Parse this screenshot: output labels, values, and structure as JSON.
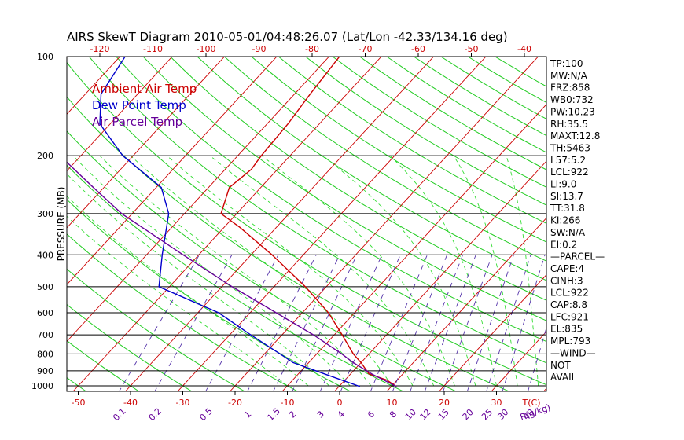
{
  "chart_data": {
    "type": "line",
    "title": "AIRS SkewT Diagram 2010-05-01/04:48:26.07 (Lat/Lon -42.33/134.16 deg)",
    "ylabel": "PRESSURE (MB)",
    "xlabel": "T(C)",
    "mixing_ratio_unit": "R(g/kg)",
    "y_scale": "log",
    "ylim": [
      1050,
      100
    ],
    "pressure_ticks": [
      100,
      200,
      300,
      400,
      500,
      600,
      700,
      800,
      900,
      1000
    ],
    "bottom_temp_ticks": [
      -50,
      -40,
      -30,
      -20,
      -10,
      0,
      10,
      20,
      30
    ],
    "top_temp_ticks": [
      -120,
      -110,
      -100,
      -90,
      -80,
      -70,
      -60,
      -50,
      -40
    ],
    "mixing_ratio_ticks": [
      "0.1",
      "0.2",
      "0.5",
      "1",
      "1.5",
      "2",
      "3",
      "4",
      "6",
      "8",
      "10",
      "12",
      "15",
      "20",
      "25",
      "30",
      "40"
    ],
    "grid": true,
    "legend_position": "top-left",
    "series": [
      {
        "name": "Ambient Air Temp",
        "color": "#cc0000",
        "points": [
          {
            "p": 1005,
            "t": 11.0
          },
          {
            "p": 960,
            "t": 8.0
          },
          {
            "p": 920,
            "t": 3.5
          },
          {
            "p": 850,
            "t": 0.0
          },
          {
            "p": 800,
            "t": -3.0
          },
          {
            "p": 700,
            "t": -8.5
          },
          {
            "p": 600,
            "t": -15.0
          },
          {
            "p": 500,
            "t": -24.0
          },
          {
            "p": 400,
            "t": -36.0
          },
          {
            "p": 330,
            "t": -47.0
          },
          {
            "p": 300,
            "t": -53.0
          },
          {
            "p": 250,
            "t": -56.0
          },
          {
            "p": 220,
            "t": -55.0
          },
          {
            "p": 200,
            "t": -55.5
          },
          {
            "p": 160,
            "t": -56.0
          },
          {
            "p": 130,
            "t": -57.0
          },
          {
            "p": 100,
            "t": -58.0
          }
        ]
      },
      {
        "name": "Dew Point Temp",
        "color": "#0000cc",
        "points": [
          {
            "p": 1005,
            "t": 4.0
          },
          {
            "p": 920,
            "t": -5.0
          },
          {
            "p": 850,
            "t": -13.0
          },
          {
            "p": 800,
            "t": -17.0
          },
          {
            "p": 700,
            "t": -26.0
          },
          {
            "p": 600,
            "t": -36.0
          },
          {
            "p": 500,
            "t": -52.0
          },
          {
            "p": 400,
            "t": -57.0
          },
          {
            "p": 300,
            "t": -63.0
          },
          {
            "p": 250,
            "t": -69.0
          },
          {
            "p": 200,
            "t": -82.0
          },
          {
            "p": 160,
            "t": -92.0
          },
          {
            "p": 130,
            "t": -97.0
          },
          {
            "p": 100,
            "t": -99.0
          }
        ]
      },
      {
        "name": "Air Parcel Temp",
        "color": "#660099",
        "points": [
          {
            "p": 1005,
            "t": 11.0
          },
          {
            "p": 922,
            "t": 4.2
          },
          {
            "p": 850,
            "t": -1.5
          },
          {
            "p": 800,
            "t": -5.2
          },
          {
            "p": 700,
            "t": -14.0
          },
          {
            "p": 600,
            "t": -25.0
          },
          {
            "p": 500,
            "t": -38.0
          },
          {
            "p": 400,
            "t": -53.0
          },
          {
            "p": 300,
            "t": -72.0
          },
          {
            "p": 250,
            "t": -82.0
          },
          {
            "p": 200,
            "t": -94.0
          },
          {
            "p": 150,
            "t": -108.0
          },
          {
            "p": 100,
            "t": -127.0
          }
        ]
      }
    ],
    "indices": [
      "TP:100",
      "MW:N/A",
      "FRZ:858",
      "WB0:732",
      "PW:10.23",
      "RH:35.5",
      "MAXT:12.8",
      "TH:5463",
      "L57:5.2",
      "LCL:922",
      "LI:9.0",
      "SI:13.7",
      "TT:31.8",
      "KI:266",
      "SW:N/A",
      "EI:0.2",
      "—PARCEL—",
      "CAPE:4",
      "CINH:3",
      "LCL:922",
      "CAP:8.8",
      "LFC:921",
      "EL:835",
      "MPL:793",
      "—WIND—",
      "NOT",
      "AVAIL"
    ]
  }
}
